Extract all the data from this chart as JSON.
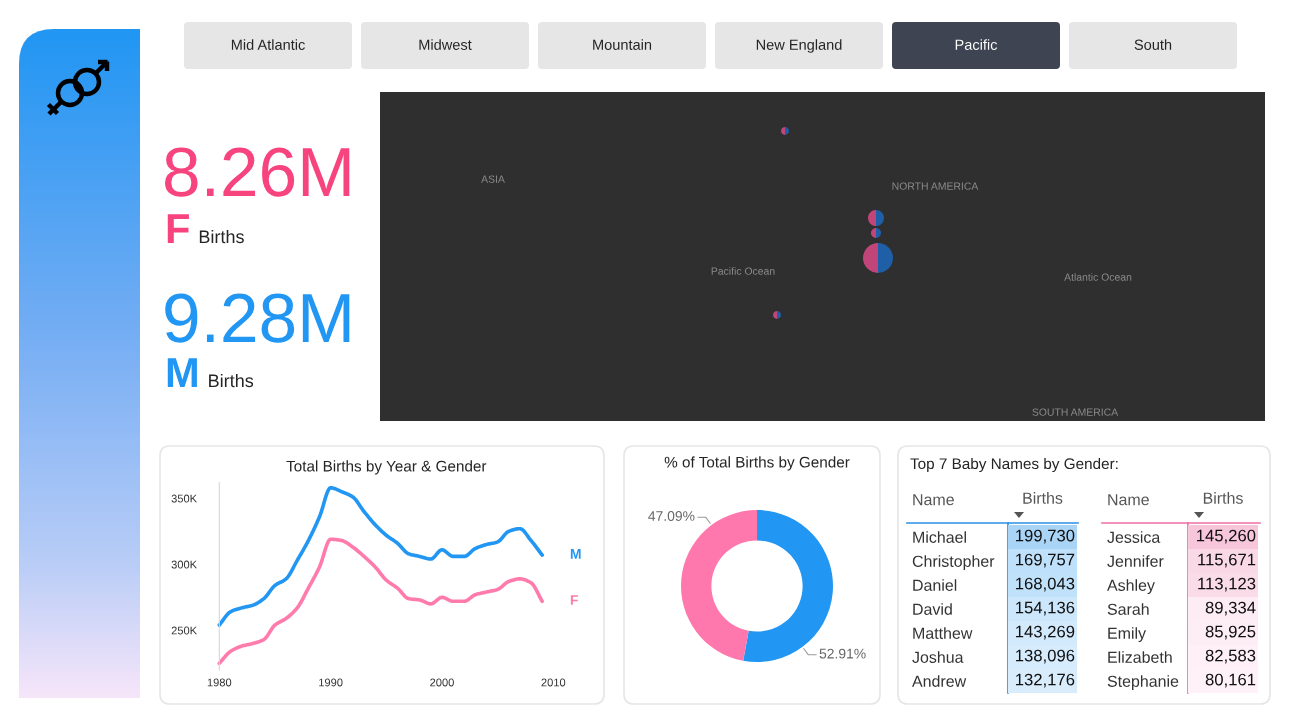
{
  "chart_data": [
    {
      "type": "other",
      "categories": [
        "Mid Atlantic",
        "Midwest",
        "Mountain",
        "New England",
        "Pacific",
        "South"
      ],
      "colors": [
        "#e6e6e6",
        "#e6e6e6",
        "#e6e6e6",
        "#e6e6e6",
        "#3e4452",
        "#e6e6e6"
      ]
    },
    {
      "type": "other",
      "categories": [
        "F",
        "M"
      ],
      "value_labels": [
        "8.26M",
        "9.28M"
      ],
      "colors": [
        "#f7447f",
        "#2196f3"
      ],
      "annotations": [
        "Births",
        "Births"
      ]
    },
    {
      "type": "other",
      "annotations": [
        "ASIA",
        "NORTH AMERICA",
        "Pacific Ocean",
        "Atlantic Ocean",
        "SOUTH AMERICA"
      ]
    },
    {
      "type": "line",
      "title": "Total Births by Year & Gender",
      "x": [
        1980,
        1981,
        1982,
        1983,
        1984,
        1985,
        1986,
        1987,
        1988,
        1989,
        1990,
        1991,
        1992,
        1993,
        1994,
        1995,
        1996,
        1997,
        1998,
        1999,
        2000,
        2001,
        2002,
        2003,
        2004,
        2005,
        2006,
        2007,
        2008,
        2009
      ],
      "series": [
        {
          "name": "M",
          "color": "#2196f3",
          "values": [
            254000,
            264000,
            267000,
            269000,
            274000,
            284000,
            289000,
            303000,
            318000,
            336000,
            358000,
            355000,
            351000,
            340000,
            330000,
            322000,
            316000,
            308000,
            306000,
            304000,
            311000,
            306000,
            306000,
            312000,
            315000,
            317000,
            325000,
            327000,
            318000,
            307000
          ]
        },
        {
          "name": "F",
          "color": "#ff7bac",
          "values": [
            225000,
            234000,
            238000,
            240000,
            243000,
            254000,
            259000,
            267000,
            282000,
            298000,
            319000,
            318000,
            313000,
            306000,
            298000,
            288000,
            282000,
            274000,
            273000,
            270000,
            275000,
            272000,
            272000,
            277000,
            279000,
            281000,
            287000,
            289000,
            286000,
            272000
          ]
        }
      ],
      "xlim": [
        1980,
        2010
      ],
      "ylim": [
        220000,
        362000
      ],
      "xticks": [
        1980,
        1990,
        2000,
        2010
      ],
      "yticks": [
        {
          "value": 250000,
          "label": "250K"
        },
        {
          "value": 300000,
          "label": "300K"
        },
        {
          "value": 350000,
          "label": "350K"
        }
      ],
      "grid": false
    },
    {
      "type": "donut",
      "title": "% of Total Births by Gender",
      "categories": [
        null,
        null
      ],
      "values": [
        52.91,
        47.09
      ],
      "colors": [
        "#2196f3",
        "#ff78ad"
      ],
      "value_labels": [
        "52.91%",
        "47.09%"
      ]
    },
    {
      "type": "other",
      "title": "Top 7 Baby Names by Gender:",
      "ylabel": "Name",
      "categories": [
        "Births"
      ],
      "y_categories": [
        "Michael",
        "Christopher",
        "Daniel",
        "David",
        "Matthew",
        "Joshua",
        "Andrew"
      ],
      "cell_labels": [
        [
          "199,730"
        ],
        [
          "169,757"
        ],
        [
          "168,043"
        ],
        [
          "154,136"
        ],
        [
          "143,269"
        ],
        [
          "138,096"
        ],
        [
          "132,176"
        ]
      ],
      "colors": [
        "#a9d4f6",
        "#bfe0fa",
        "#c0e1fa",
        "#cce6fb",
        "#d3e9fc",
        "#d6ebfc",
        "#d8ecfc"
      ]
    },
    {
      "type": "other",
      "ylabel": "Name",
      "categories": [
        "Births"
      ],
      "y_categories": [
        "Jessica",
        "Jennifer",
        "Ashley",
        "Sarah",
        "Emily",
        "Elizabeth",
        "Stephanie"
      ],
      "cell_labels": [
        [
          "145,260"
        ],
        [
          "115,671"
        ],
        [
          "113,123"
        ],
        [
          "89,334"
        ],
        [
          "85,925"
        ],
        [
          "82,583"
        ],
        [
          "80,161"
        ]
      ],
      "colors": [
        "#f7c6da",
        "#fad9e7",
        "#fadbe8",
        "#fdecf3",
        "#fdeef5",
        "#fef0f6",
        "#fef1f7"
      ]
    }
  ]
}
